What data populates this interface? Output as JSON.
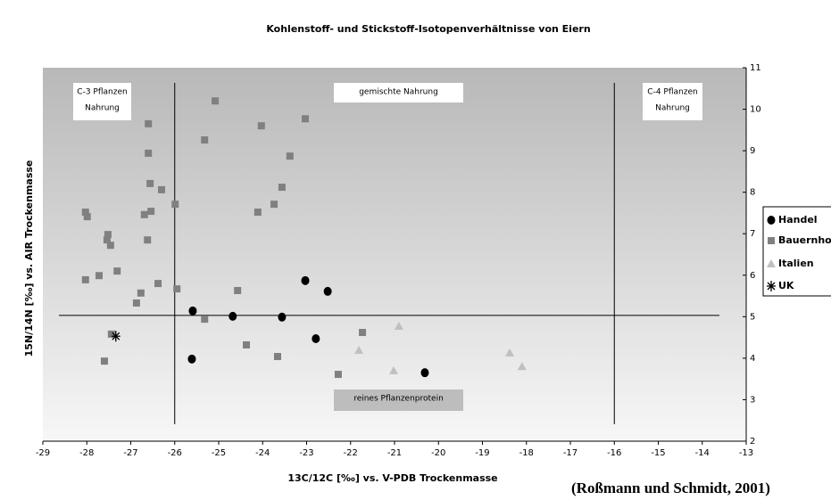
{
  "chart_data": {
    "type": "scatter",
    "title": "Kohlenstoff- und Stickstoff-Isotopenverhältnisse von Eiern",
    "xlabel": "13C/12C [‰] vs. V-PDB Trockenmasse",
    "ylabel": "15N/14N [‰] vs. AIR Trockenmasse",
    "source": "(Roßmann und Schmidt, 2001)",
    "xlim": [
      -29,
      -13
    ],
    "xticks": [
      -29,
      -28,
      -27,
      -26,
      -25,
      -24,
      -23,
      -22,
      -21,
      -20,
      -19,
      -18,
      -17,
      -16,
      -15,
      -14,
      -13
    ],
    "ylim": [
      2,
      11
    ],
    "yticks": [
      2,
      3,
      4,
      5,
      6,
      7,
      8,
      9,
      10,
      11
    ],
    "reference_lines": {
      "x": [
        -26,
        -16
      ],
      "y": [
        5.03
      ]
    },
    "annotations": [
      {
        "lines": [
          "C-3 Pflanzen",
          "Nahrung"
        ]
      },
      {
        "lines": [
          "gemischte Nahrung"
        ]
      },
      {
        "lines": [
          "C-4 Pflanzen",
          "Nahrung"
        ]
      },
      {
        "lines": [
          "reines Pflanzenprotein"
        ]
      }
    ],
    "series": [
      {
        "name": "Handel",
        "color": "#000000",
        "marker": "circle",
        "x": [
          -25.59,
          -24.68,
          -23.56,
          -23.03,
          -22.52,
          -22.79,
          -25.61,
          -20.31
        ],
        "values": [
          5.14,
          5.01,
          4.99,
          5.87,
          5.61,
          4.47,
          3.98,
          3.65
        ]
      },
      {
        "name": "Bauernhof",
        "color": "#808080",
        "marker": "square",
        "x": [
          -25.08,
          -23.03,
          -26.6,
          -24.03,
          -25.32,
          -26.6,
          -23.38,
          -26.56,
          -26.3,
          -23.56,
          -25.99,
          -23.74,
          -24.11,
          -28.03,
          -27.99,
          -26.54,
          -26.69,
          -27.52,
          -27.54,
          -27.46,
          -26.62,
          -27.31,
          -27.72,
          -28.03,
          -26.38,
          -25.95,
          -26.77,
          -24.57,
          -26.87,
          -25.32,
          -27.44,
          -21.73,
          -24.37,
          -23.66,
          -27.6,
          -22.28
        ],
        "values": [
          10.2,
          9.77,
          9.65,
          9.6,
          9.26,
          8.94,
          8.87,
          8.21,
          8.06,
          8.12,
          7.71,
          7.71,
          7.52,
          7.52,
          7.41,
          7.54,
          7.46,
          6.98,
          6.85,
          6.72,
          6.85,
          6.1,
          5.99,
          5.89,
          5.8,
          5.67,
          5.57,
          5.63,
          5.33,
          4.94,
          4.58,
          4.62,
          4.32,
          4.04,
          3.93,
          3.61
        ]
      },
      {
        "name": "Italien",
        "color": "#c0c0c0",
        "marker": "triangle",
        "x": [
          -20.9,
          -21.81,
          -21.02,
          -18.38,
          -18.1
        ],
        "values": [
          4.77,
          4.19,
          3.7,
          4.13,
          3.8
        ]
      },
      {
        "name": "UK",
        "color": "#000000",
        "marker": "star",
        "x": [
          -27.34
        ],
        "values": [
          4.53
        ]
      }
    ]
  }
}
